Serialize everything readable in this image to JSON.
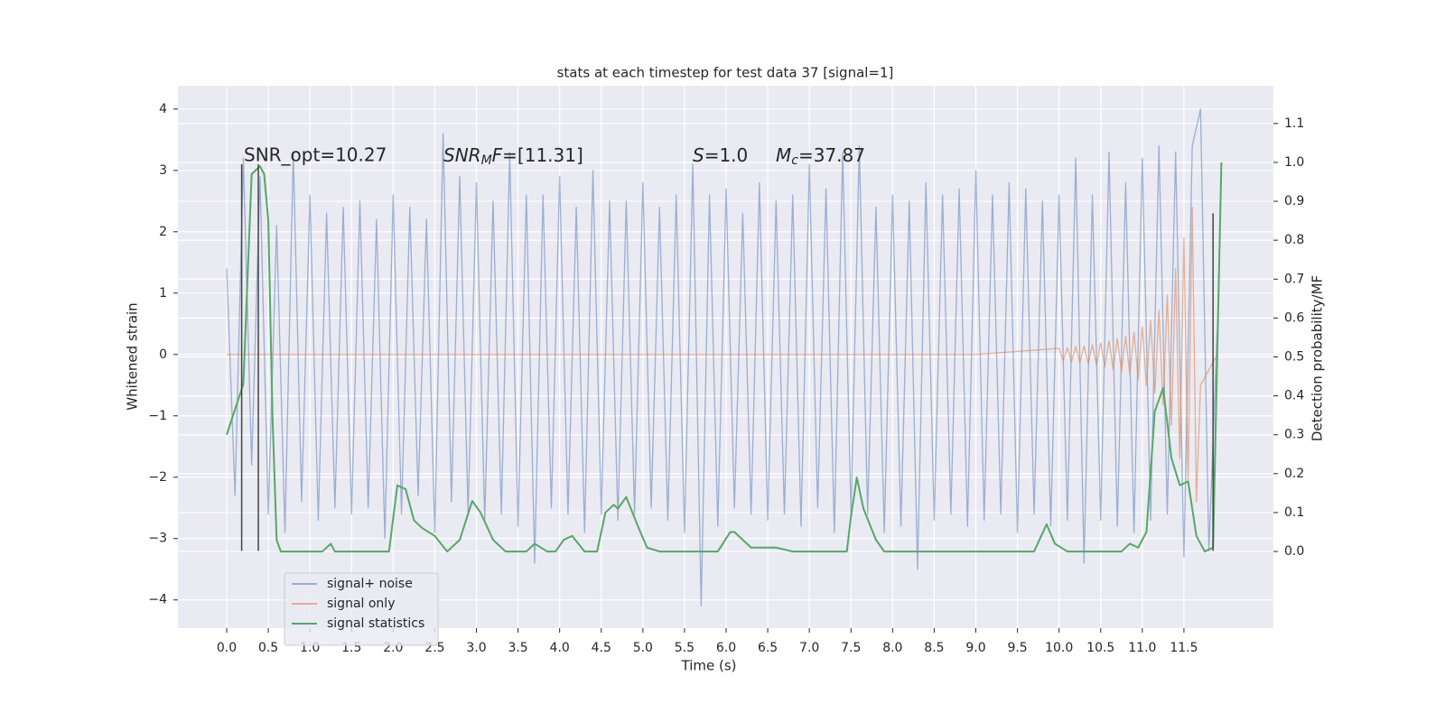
{
  "chart_data": {
    "type": "line",
    "title": "stats at each timestep for test data 37 [signal=1]",
    "x_label": "Time (s)",
    "y_label": "Whitened strain",
    "y2_label": "Detection probability/MF",
    "annotations": [
      "SNR_opt=10.27",
      [
        "SNR",
        "M",
        "F",
        "=[11.31]"
      ],
      [
        "S",
        "=1.0"
      ],
      [
        "M",
        "c",
        "=37.87"
      ]
    ],
    "xlim": [
      -0.586,
      12.575
    ],
    "ylim": [
      -4.46,
      4.38
    ],
    "y2lim": [
      -0.197,
      1.197
    ],
    "xticks": [
      {
        "value": 0,
        "label": "0.0"
      },
      0.5,
      {
        "value": 1,
        "label": "1.0"
      },
      1.5,
      {
        "value": 2,
        "label": "2.0"
      },
      2.5,
      {
        "value": 3,
        "label": "3.0"
      },
      3.5,
      {
        "value": 4,
        "label": "4.0"
      },
      4.5,
      {
        "value": 5,
        "label": "5.0"
      },
      5.5,
      {
        "value": 6,
        "label": "6.0"
      },
      6.5,
      {
        "value": 7,
        "label": "7.0"
      },
      7.5,
      {
        "value": 8,
        "label": "8.0"
      },
      8.5,
      {
        "value": 9,
        "label": "9.0"
      },
      9.5,
      {
        "value": 10,
        "label": "10.0"
      },
      10.5,
      {
        "value": 11,
        "label": "11.0"
      },
      11.5
    ],
    "yticks": [
      {
        "value": -4,
        "label": "−4"
      },
      {
        "value": -3,
        "label": "−3"
      },
      {
        "value": -2,
        "label": "−2"
      },
      {
        "value": -1,
        "label": "−1"
      },
      0,
      1,
      2,
      3,
      4
    ],
    "y2ticks": [
      {
        "value": 0,
        "label": "0.0"
      },
      0.1,
      0.2,
      0.3,
      0.4,
      0.5,
      0.6,
      0.7,
      0.8,
      0.9,
      {
        "value": 1,
        "label": "1.0"
      },
      1.1
    ],
    "grid": true,
    "legend": "lower left",
    "vlines": [
      {
        "x": 0.18,
        "ymin": -3.2,
        "ymax": 3.1
      },
      {
        "x": 0.38,
        "ymin": -3.2,
        "ymax": 3.1
      },
      {
        "x": 11.85,
        "ymin": -3.2,
        "ymax": 2.3
      }
    ],
    "series": [
      {
        "name": "signal+ noise",
        "color": "#4c72b0",
        "opacity": 0.5,
        "x": [
          0.0,
          0.1,
          0.2,
          0.3,
          0.4,
          0.5,
          0.6,
          0.7,
          0.8,
          0.9,
          1.0,
          1.1,
          1.2,
          1.3,
          1.4,
          1.5,
          1.6,
          1.7,
          1.8,
          1.9,
          2.0,
          2.1,
          2.2,
          2.3,
          2.4,
          2.5,
          2.6,
          2.7,
          2.8,
          2.9,
          3.0,
          3.1,
          3.2,
          3.3,
          3.4,
          3.5,
          3.6,
          3.7,
          3.8,
          3.9,
          4.0,
          4.1,
          4.2,
          4.3,
          4.4,
          4.5,
          4.6,
          4.7,
          4.8,
          4.9,
          5.0,
          5.1,
          5.2,
          5.3,
          5.4,
          5.5,
          5.6,
          5.7,
          5.8,
          5.9,
          6.0,
          6.1,
          6.2,
          6.3,
          6.4,
          6.5,
          6.6,
          6.7,
          6.8,
          6.9,
          7.0,
          7.1,
          7.2,
          7.3,
          7.4,
          7.5,
          7.6,
          7.7,
          7.8,
          7.9,
          8.0,
          8.1,
          8.2,
          8.3,
          8.4,
          8.5,
          8.6,
          8.7,
          8.8,
          8.9,
          9.0,
          9.1,
          9.2,
          9.3,
          9.4,
          9.5,
          9.6,
          9.7,
          9.8,
          9.9,
          10.0,
          10.1,
          10.2,
          10.3,
          10.4,
          10.5,
          10.6,
          10.7,
          10.8,
          10.9,
          11.0,
          11.1,
          11.2,
          11.3,
          11.4,
          11.5,
          11.6,
          11.7,
          11.8,
          11.9
        ],
        "values": [
          1.4,
          -2.3,
          3.2,
          -1.8,
          2.9,
          -2.6,
          2.1,
          -2.9,
          3.3,
          -2.4,
          2.6,
          -2.7,
          2.3,
          -2.5,
          2.4,
          -2.6,
          2.5,
          -2.5,
          2.2,
          -3.0,
          2.6,
          -2.6,
          2.4,
          -2.3,
          2.2,
          -2.9,
          3.6,
          -2.4,
          2.9,
          -2.6,
          2.8,
          -2.7,
          2.5,
          -2.6,
          3.3,
          -2.8,
          2.6,
          -3.4,
          2.6,
          -2.5,
          2.9,
          -2.6,
          2.4,
          -2.9,
          3.0,
          -2.6,
          2.5,
          -2.7,
          2.5,
          -2.6,
          2.8,
          -2.5,
          2.4,
          -2.7,
          2.6,
          -2.9,
          3.1,
          -4.1,
          2.6,
          -2.8,
          2.7,
          -2.5,
          2.3,
          -2.6,
          2.8,
          -2.7,
          2.5,
          -2.6,
          2.6,
          -2.8,
          3.1,
          -2.5,
          2.7,
          -2.9,
          3.3,
          -2.6,
          3.4,
          -2.6,
          2.4,
          -2.9,
          2.6,
          -2.8,
          2.5,
          -3.5,
          2.8,
          -2.7,
          2.6,
          -2.6,
          2.7,
          -2.8,
          3.0,
          -2.7,
          2.6,
          -2.6,
          2.8,
          -2.9,
          2.7,
          -2.6,
          2.5,
          -2.8,
          2.6,
          -2.7,
          3.2,
          -3.4,
          2.6,
          -2.7,
          3.3,
          -2.8,
          2.8,
          -2.9,
          3.2,
          -2.7,
          3.4,
          -2.6,
          3.3,
          -3.3,
          3.4,
          4.0,
          -3.2,
          0.4
        ]
      },
      {
        "name": "signal only",
        "color": "#dd8452",
        "opacity": 0.6,
        "x": [
          0.0,
          9.0,
          10.0,
          10.05,
          10.1,
          10.15,
          10.2,
          10.25,
          10.3,
          10.35,
          10.4,
          10.45,
          10.5,
          10.55,
          10.6,
          10.65,
          10.7,
          10.75,
          10.8,
          10.85,
          10.9,
          10.95,
          11.0,
          11.05,
          11.1,
          11.15,
          11.2,
          11.25,
          11.3,
          11.35,
          11.4,
          11.45,
          11.5,
          11.55,
          11.6,
          11.65,
          11.7,
          11.9
        ],
        "values": [
          0,
          0,
          0.1,
          -0.1,
          0.11,
          -0.12,
          0.13,
          -0.13,
          0.14,
          -0.15,
          0.16,
          -0.17,
          0.19,
          -0.2,
          0.22,
          -0.24,
          0.26,
          -0.28,
          0.3,
          -0.33,
          0.36,
          -0.4,
          0.45,
          -0.5,
          0.56,
          -0.63,
          0.72,
          -0.83,
          0.97,
          -1.15,
          1.4,
          -1.7,
          1.9,
          -2.1,
          2.4,
          -2.4,
          -0.5,
          0
        ]
      },
      {
        "name": "signal statistics",
        "color": "#55a868",
        "opacity": 1,
        "axis": "y2",
        "x": [
          0.0,
          0.2,
          0.3,
          0.4,
          0.45,
          0.5,
          0.55,
          0.6,
          0.65,
          0.8,
          1.0,
          1.15,
          1.25,
          1.3,
          1.5,
          1.7,
          1.95,
          2.05,
          2.15,
          2.25,
          2.35,
          2.5,
          2.65,
          2.8,
          2.95,
          3.05,
          3.2,
          3.35,
          3.6,
          3.7,
          3.85,
          3.95,
          4.05,
          4.15,
          4.3,
          4.45,
          4.55,
          4.65,
          4.7,
          4.8,
          4.95,
          5.05,
          5.2,
          5.5,
          5.9,
          6.05,
          6.1,
          6.3,
          6.6,
          6.8,
          7.2,
          7.45,
          7.5,
          7.57,
          7.65,
          7.8,
          7.9,
          8.2,
          9.0,
          9.7,
          9.85,
          9.95,
          10.1,
          10.5,
          10.75,
          10.85,
          10.95,
          11.05,
          11.15,
          11.25,
          11.35,
          11.45,
          11.55,
          11.65,
          11.75,
          11.85,
          11.95
        ],
        "values": [
          0.3,
          0.43,
          0.97,
          0.99,
          0.97,
          0.85,
          0.35,
          0.03,
          0.0,
          0.0,
          0.0,
          0.0,
          0.02,
          0.0,
          0.0,
          0.0,
          0.0,
          0.17,
          0.16,
          0.08,
          0.06,
          0.04,
          0.0,
          0.03,
          0.13,
          0.1,
          0.03,
          0.0,
          0.0,
          0.02,
          0.0,
          0.0,
          0.03,
          0.04,
          0.0,
          0.0,
          0.1,
          0.12,
          0.11,
          0.14,
          0.06,
          0.01,
          0.0,
          0.0,
          0.0,
          0.05,
          0.05,
          0.01,
          0.01,
          0.0,
          0.0,
          0.0,
          0.09,
          0.19,
          0.11,
          0.03,
          0.0,
          0.0,
          0.0,
          0.0,
          0.07,
          0.02,
          0.0,
          0.0,
          0.0,
          0.02,
          0.01,
          0.05,
          0.36,
          0.42,
          0.24,
          0.17,
          0.18,
          0.04,
          0.0,
          0.01,
          1.0
        ]
      }
    ]
  }
}
